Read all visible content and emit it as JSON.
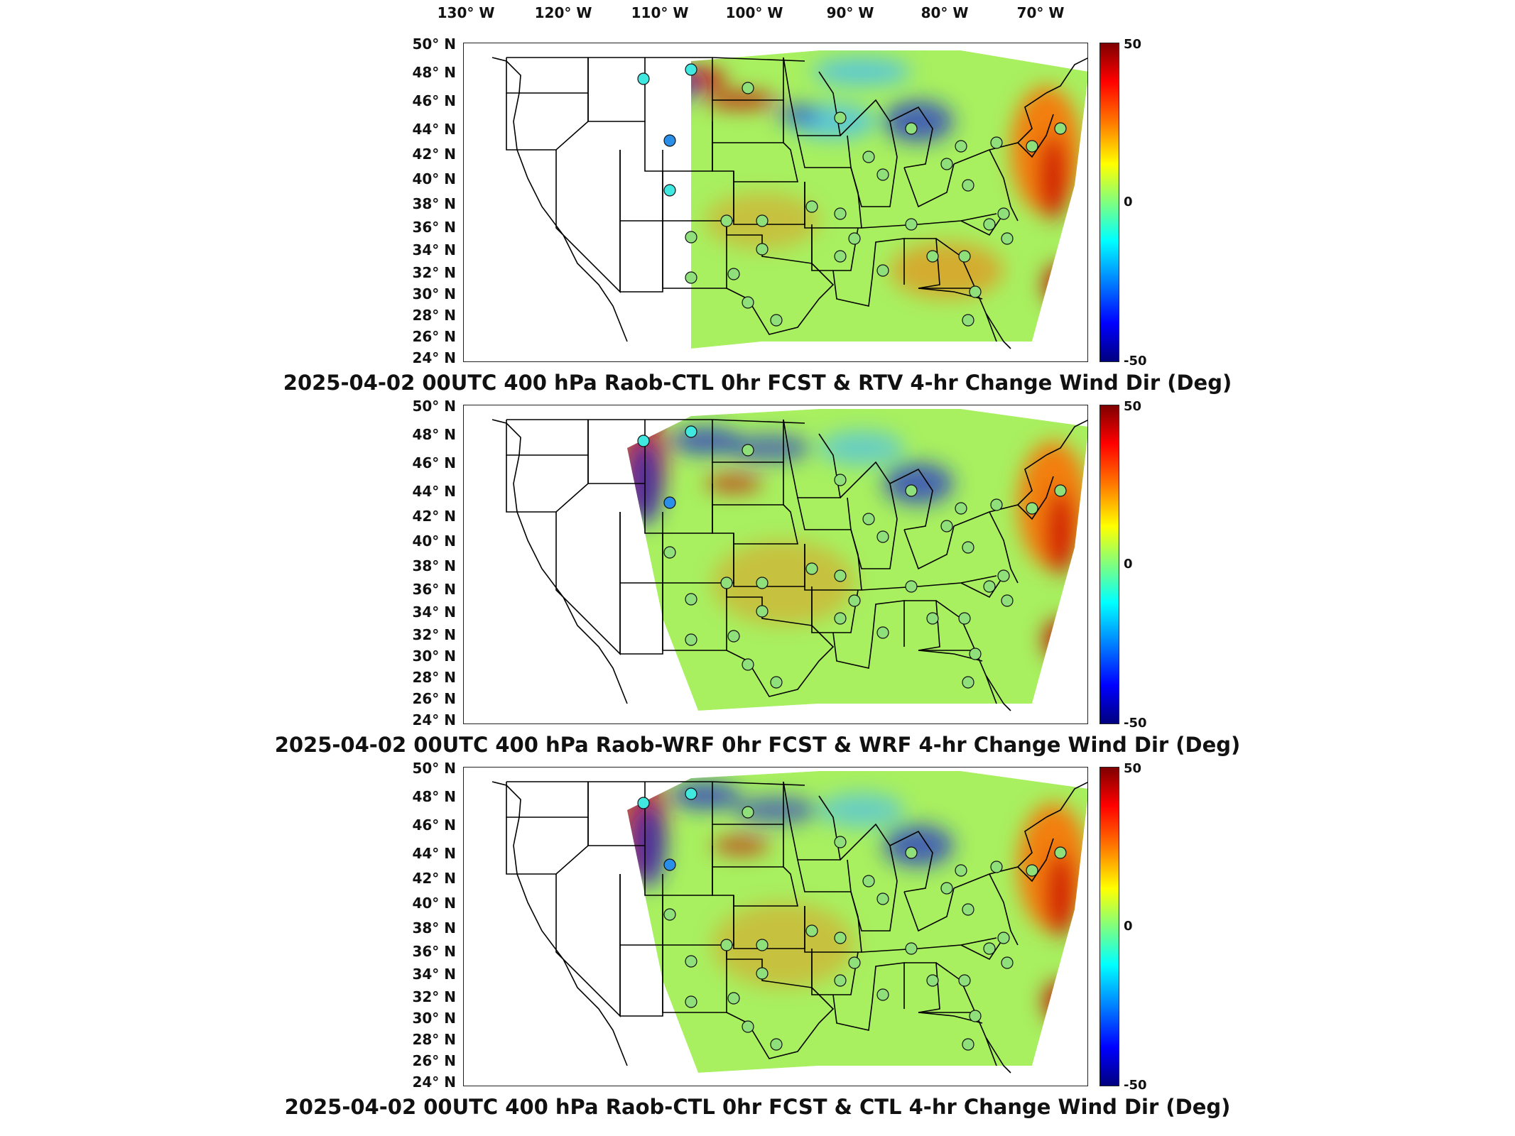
{
  "longitude_labels": [
    "130° W",
    "120° W",
    "110° W",
    "100° W",
    "90° W",
    "80° W",
    "70° W"
  ],
  "latitude_labels": [
    "50° N",
    "48° N",
    "46° N",
    "44° N",
    "42° N",
    "40° N",
    "38° N",
    "36° N",
    "34° N",
    "32° N",
    "30° N",
    "28° N",
    "26° N",
    "24° N"
  ],
  "colorbar": {
    "max": "50",
    "mid": "0",
    "min": "-50"
  },
  "panels": [
    {
      "title": "2025-04-02 00UTC 400 hPa Raob-CTL 0hr FCST & RTV 4-hr Change Wind Dir (Deg)"
    },
    {
      "title": "2025-04-02 00UTC 400 hPa Raob-WRF 0hr FCST & WRF 4-hr Change Wind Dir (Deg)"
    },
    {
      "title": "2025-04-02 00UTC 400 hPa Raob-CTL 0hr FCST & CTL 4-hr Change Wind Dir (Deg)"
    }
  ],
  "colors": {
    "field_base": "#a8f060",
    "warm": "#ff6a00",
    "hot": "#c80000",
    "cool": "#3fb8ff",
    "cold": "#1a2bd0",
    "station_neutral": "#8fe07a",
    "station_cyan": "#40e8e0",
    "station_blue": "#2a8fe8"
  }
}
